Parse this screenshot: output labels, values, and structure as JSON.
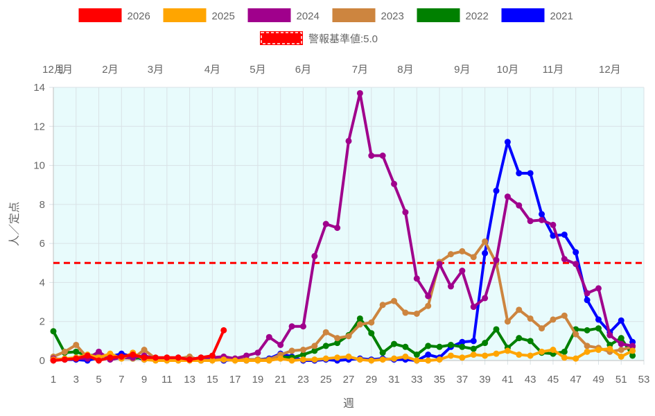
{
  "chart_data": {
    "type": "line",
    "title": "",
    "xlabel": "週",
    "ylabel": "人／定点",
    "ylim": [
      0,
      14
    ],
    "xlim": [
      1,
      53
    ],
    "y_ticks": [
      0,
      2,
      4,
      6,
      8,
      10,
      12,
      14
    ],
    "x_ticks": [
      1,
      3,
      5,
      7,
      9,
      11,
      13,
      15,
      17,
      19,
      21,
      23,
      25,
      27,
      29,
      31,
      33,
      35,
      37,
      39,
      41,
      43,
      45,
      47,
      49,
      51,
      53
    ],
    "grid": true,
    "plot_background": "#e8fbfc",
    "legend_position": "top",
    "month_labels": [
      {
        "label": "12月",
        "week": 1
      },
      {
        "label": "1月",
        "week": 2
      },
      {
        "label": "2月",
        "week": 6
      },
      {
        "label": "3月",
        "week": 10
      },
      {
        "label": "4月",
        "week": 15
      },
      {
        "label": "5月",
        "week": 19
      },
      {
        "label": "6月",
        "week": 23
      },
      {
        "label": "7月",
        "week": 28
      },
      {
        "label": "8月",
        "week": 32
      },
      {
        "label": "9月",
        "week": 37
      },
      {
        "label": "10月",
        "week": 41
      },
      {
        "label": "11月",
        "week": 45
      },
      {
        "label": "12月",
        "week": 50
      }
    ],
    "threshold": {
      "label": "警報基準値:5.0",
      "value": 5.0,
      "color": "#ff0000"
    },
    "series": [
      {
        "name": "2021",
        "color": "#0000ff",
        "values": [
          0.05,
          0.05,
          0.05,
          0.0,
          0.15,
          0.2,
          0.35,
          0.2,
          0.05,
          0.1,
          0.1,
          0.1,
          0.05,
          0.0,
          0.1,
          0.0,
          0.05,
          0.0,
          0.05,
          0.1,
          0.35,
          0.2,
          0.0,
          0.0,
          0.05,
          0.0,
          0.05,
          0.1,
          0.05,
          0.1,
          0.05,
          0.05,
          0.0,
          0.3,
          0.15,
          0.7,
          0.95,
          1.0,
          5.5,
          8.7,
          11.2,
          9.6,
          9.6,
          7.5,
          6.4,
          6.45,
          5.55,
          3.1,
          2.1,
          1.45,
          2.05,
          0.95
        ]
      },
      {
        "name": "2022",
        "color": "#008000",
        "values": [
          1.5,
          0.4,
          0.45,
          0.25,
          0.3,
          0.2,
          0.15,
          0.1,
          0.15,
          0.1,
          0.1,
          0.1,
          0.1,
          0.05,
          0.05,
          0.1,
          0.05,
          0.05,
          0.05,
          0.05,
          0.2,
          0.15,
          0.3,
          0.5,
          0.75,
          0.9,
          1.3,
          2.15,
          1.4,
          0.4,
          0.85,
          0.7,
          0.3,
          0.75,
          0.7,
          0.8,
          0.7,
          0.6,
          0.9,
          1.6,
          0.65,
          1.15,
          1.0,
          0.4,
          0.35,
          0.45,
          1.6,
          1.55,
          1.65,
          0.8,
          1.15,
          0.25
        ]
      },
      {
        "name": "2023",
        "color": "#cd853f",
        "values": [
          0.2,
          0.45,
          0.8,
          0.15,
          0.25,
          0.1,
          0.15,
          0.1,
          0.55,
          0.1,
          0.15,
          0.1,
          0.2,
          0.0,
          0.1,
          0.05,
          0.1,
          0.05,
          0.05,
          0.05,
          0.3,
          0.5,
          0.55,
          0.75,
          1.45,
          1.15,
          1.25,
          1.85,
          1.95,
          2.85,
          3.05,
          2.45,
          2.4,
          2.8,
          5.05,
          5.45,
          5.6,
          5.3,
          6.1,
          5.0,
          2.0,
          2.6,
          2.15,
          1.65,
          2.1,
          2.3,
          1.35,
          0.75,
          0.65,
          0.45,
          0.55,
          0.7
        ]
      },
      {
        "name": "2024",
        "color": "#a0008c",
        "values": [
          0.1,
          0.05,
          0.1,
          0.1,
          0.45,
          0.05,
          0.15,
          0.15,
          0.25,
          0.1,
          0.1,
          0.15,
          0.05,
          0.15,
          0.15,
          0.2,
          0.1,
          0.25,
          0.4,
          1.2,
          0.8,
          1.75,
          1.75,
          5.35,
          7.0,
          6.8,
          11.25,
          13.7,
          10.5,
          10.5,
          9.05,
          7.6,
          4.2,
          3.3,
          4.95,
          3.8,
          4.6,
          2.75,
          3.2,
          5.15,
          8.4,
          7.95,
          7.15,
          7.2,
          6.95,
          5.2,
          4.95,
          3.45,
          3.7,
          1.3,
          0.85,
          0.75
        ]
      },
      {
        "name": "2025",
        "color": "#ffa500",
        "values": [
          0.05,
          0.1,
          0.15,
          0.3,
          0.15,
          0.35,
          0.1,
          0.4,
          0.05,
          0.0,
          0.0,
          0.0,
          0.0,
          0.0,
          0.0,
          0.05,
          0.0,
          0.0,
          0.0,
          0.0,
          0.1,
          0.0,
          0.05,
          0.05,
          0.1,
          0.15,
          0.2,
          0.05,
          0.0,
          0.05,
          0.1,
          0.2,
          0.0,
          0.0,
          0.05,
          0.25,
          0.15,
          0.3,
          0.25,
          0.35,
          0.5,
          0.3,
          0.25,
          0.45,
          0.55,
          0.15,
          0.1,
          0.45,
          0.55,
          0.6,
          0.2,
          0.5
        ]
      },
      {
        "name": "2026",
        "color": "#ff0000",
        "values": [
          0.0,
          0.05,
          0.1,
          0.25,
          0.0,
          0.15,
          0.2,
          0.3,
          0.15,
          0.15,
          0.15,
          0.15,
          0.05,
          0.15,
          0.25,
          1.55
        ]
      }
    ]
  }
}
